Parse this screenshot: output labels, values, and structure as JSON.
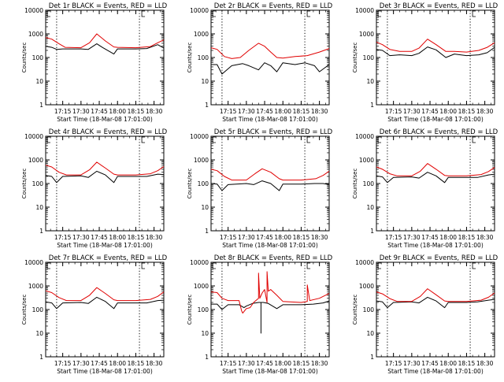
{
  "colors": {
    "events": "#000000",
    "lld": "#e00000",
    "axis": "#000000",
    "background": "#ffffff"
  },
  "chart_data": [
    {
      "type": "line",
      "title": "Det 1r BLACK = Events, RED = LLD",
      "ylabel": "Counts/sec",
      "xlabel": "Start Time (18-Mar-08 17:01:00)",
      "yscale": "log",
      "ylim": [
        1,
        10000
      ],
      "ytick_labels": [
        "1",
        "10",
        "100",
        "1000",
        "10000"
      ],
      "x_tick_labels": [
        "17:15",
        "17:30",
        "17:45",
        "18:00",
        "18:15",
        "18:30"
      ],
      "xlim": [
        "17:01",
        "18:38"
      ],
      "vlines": [
        "17:10",
        "18:18"
      ],
      "series": [
        {
          "name": "Events",
          "x": [
            "17:01",
            "17:06",
            "17:10",
            "17:15",
            "17:30",
            "17:36",
            "17:43",
            "17:48",
            "17:57",
            "18:00",
            "18:15",
            "18:24",
            "18:33",
            "18:38"
          ],
          "values": [
            300,
            270,
            220,
            230,
            230,
            220,
            380,
            260,
            140,
            230,
            230,
            240,
            350,
            250
          ]
        },
        {
          "name": "LLD",
          "x": [
            "17:01",
            "17:06",
            "17:12",
            "17:17",
            "17:30",
            "17:37",
            "17:43",
            "17:50",
            "17:57",
            "18:00",
            "18:15",
            "18:27",
            "18:33",
            "18:38"
          ],
          "values": [
            700,
            600,
            380,
            270,
            260,
            420,
            1000,
            500,
            280,
            270,
            260,
            290,
            420,
            560
          ]
        }
      ]
    },
    {
      "type": "line",
      "title": "Det 2r BLACK = Events, RED = LLD",
      "ylabel": "Counts/sec",
      "xlabel": "Start Time (18-Mar-08 17:01:00)",
      "yscale": "log",
      "ylim": [
        1,
        10000
      ],
      "ytick_labels": [
        "1",
        "10",
        "100",
        "1000",
        "10000"
      ],
      "x_tick_labels": [
        "17:15",
        "17:30",
        "17:45",
        "18:00",
        "18:15",
        "18:30"
      ],
      "xlim": [
        "17:01",
        "18:38"
      ],
      "vlines": [
        "17:10",
        "18:18"
      ],
      "series": [
        {
          "name": "Events",
          "x": [
            "17:01",
            "17:06",
            "17:10",
            "17:18",
            "17:27",
            "17:32",
            "17:40",
            "17:45",
            "17:50",
            "17:55",
            "18:00",
            "18:10",
            "18:18",
            "18:26",
            "18:30",
            "18:38"
          ],
          "values": [
            50,
            50,
            20,
            45,
            55,
            45,
            30,
            60,
            45,
            25,
            60,
            50,
            60,
            45,
            25,
            50
          ]
        },
        {
          "name": "LLD",
          "x": [
            "17:01",
            "17:06",
            "17:12",
            "17:18",
            "17:25",
            "17:32",
            "17:40",
            "17:45",
            "17:50",
            "17:55",
            "18:00",
            "18:10",
            "18:20",
            "18:30",
            "18:38"
          ],
          "values": [
            260,
            220,
            110,
            90,
            100,
            200,
            400,
            300,
            170,
            100,
            95,
            110,
            120,
            170,
            240
          ]
        }
      ]
    },
    {
      "type": "line",
      "title": "Det 3r BLACK = Events, RED = LLD",
      "ylabel": "Counts/sec",
      "xlabel": "Start Time (18-Mar-08 17:01:00)",
      "yscale": "log",
      "ylim": [
        1,
        10000
      ],
      "ytick_labels": [
        "1",
        "10",
        "100",
        "1000",
        "10000"
      ],
      "x_tick_labels": [
        "17:15",
        "17:30",
        "17:45",
        "18:00",
        "18:15",
        "18:30"
      ],
      "xlim": [
        "17:01",
        "18:38"
      ],
      "vlines": [
        "17:10",
        "18:18"
      ],
      "series": [
        {
          "name": "Events",
          "x": [
            "17:01",
            "17:06",
            "17:12",
            "17:20",
            "17:30",
            "17:36",
            "17:43",
            "17:50",
            "17:58",
            "18:05",
            "18:15",
            "18:25",
            "18:32",
            "18:38"
          ],
          "values": [
            220,
            200,
            120,
            130,
            120,
            150,
            280,
            210,
            100,
            140,
            120,
            130,
            160,
            270
          ]
        },
        {
          "name": "LLD",
          "x": [
            "17:01",
            "17:06",
            "17:12",
            "17:20",
            "17:30",
            "17:36",
            "17:43",
            "17:50",
            "17:58",
            "18:05",
            "18:15",
            "18:25",
            "18:32",
            "18:38"
          ],
          "values": [
            450,
            350,
            220,
            180,
            180,
            250,
            600,
            350,
            180,
            180,
            170,
            200,
            270,
            420
          ]
        }
      ]
    },
    {
      "type": "line",
      "title": "Det 4r BLACK = Events, RED = LLD",
      "ylabel": "Counts/sec",
      "xlabel": "Start Time (18-Mar-08 17:01:00)",
      "yscale": "log",
      "ylim": [
        1,
        10000
      ],
      "ytick_labels": [
        "1",
        "10",
        "100",
        "1000",
        "10000"
      ],
      "x_tick_labels": [
        "17:15",
        "17:30",
        "17:45",
        "18:00",
        "18:15",
        "18:30"
      ],
      "xlim": [
        "17:01",
        "18:38"
      ],
      "vlines": [
        "17:10",
        "18:18"
      ],
      "series": [
        {
          "name": "Events",
          "x": [
            "17:01",
            "17:06",
            "17:10",
            "17:15",
            "17:30",
            "17:36",
            "17:43",
            "17:50",
            "17:57",
            "18:00",
            "18:15",
            "18:24",
            "18:33",
            "18:38"
          ],
          "values": [
            220,
            200,
            110,
            200,
            210,
            180,
            330,
            230,
            110,
            200,
            200,
            200,
            250,
            240
          ]
        },
        {
          "name": "LLD",
          "x": [
            "17:01",
            "17:06",
            "17:12",
            "17:18",
            "17:30",
            "17:37",
            "17:43",
            "17:50",
            "17:57",
            "18:00",
            "18:15",
            "18:27",
            "18:33",
            "18:38"
          ],
          "values": [
            600,
            500,
            300,
            230,
            230,
            380,
            800,
            450,
            250,
            230,
            230,
            260,
            350,
            520
          ]
        }
      ]
    },
    {
      "type": "line",
      "title": "Det 5r BLACK = Events, RED = LLD",
      "ylabel": "Counts/sec",
      "xlabel": "Start Time (18-Mar-08 17:01:00)",
      "yscale": "log",
      "ylim": [
        1,
        10000
      ],
      "ytick_labels": [
        "1",
        "10",
        "100",
        "1000",
        "10000"
      ],
      "x_tick_labels": [
        "17:15",
        "17:30",
        "17:45",
        "18:00",
        "18:15",
        "18:30"
      ],
      "xlim": [
        "17:01",
        "18:38"
      ],
      "vlines": [
        "17:10",
        "18:18"
      ],
      "series": [
        {
          "name": "Events",
          "x": [
            "17:01",
            "17:06",
            "17:10",
            "17:15",
            "17:30",
            "17:36",
            "17:43",
            "17:50",
            "17:57",
            "18:00",
            "18:15",
            "18:26",
            "18:33",
            "18:38"
          ],
          "values": [
            100,
            95,
            50,
            90,
            100,
            90,
            130,
            100,
            50,
            95,
            95,
            100,
            100,
            90
          ]
        },
        {
          "name": "LLD",
          "x": [
            "17:01",
            "17:06",
            "17:12",
            "17:18",
            "17:30",
            "17:37",
            "17:43",
            "17:50",
            "17:57",
            "18:00",
            "18:15",
            "18:27",
            "18:33",
            "18:38"
          ],
          "values": [
            400,
            350,
            200,
            140,
            140,
            260,
            420,
            300,
            160,
            140,
            140,
            160,
            220,
            330
          ]
        }
      ]
    },
    {
      "type": "line",
      "title": "Det 6r BLACK = Events, RED = LLD",
      "ylabel": "Counts/sec",
      "xlabel": "Start Time (18-Mar-08 17:01:00)",
      "yscale": "log",
      "ylim": [
        1,
        10000
      ],
      "ytick_labels": [
        "1",
        "10",
        "100",
        "1000",
        "10000"
      ],
      "x_tick_labels": [
        "17:15",
        "17:30",
        "17:45",
        "18:00",
        "18:15",
        "18:30"
      ],
      "xlim": [
        "17:01",
        "18:38"
      ],
      "vlines": [
        "17:10",
        "18:18"
      ],
      "series": [
        {
          "name": "Events",
          "x": [
            "17:01",
            "17:06",
            "17:10",
            "17:15",
            "17:30",
            "17:36",
            "17:43",
            "17:50",
            "17:57",
            "18:00",
            "18:15",
            "18:24",
            "18:33",
            "18:38"
          ],
          "values": [
            210,
            190,
            110,
            180,
            190,
            170,
            300,
            210,
            110,
            180,
            180,
            180,
            230,
            250
          ]
        },
        {
          "name": "LLD",
          "x": [
            "17:01",
            "17:06",
            "17:12",
            "17:18",
            "17:30",
            "17:37",
            "17:43",
            "17:50",
            "17:57",
            "18:00",
            "18:15",
            "18:27",
            "18:33",
            "18:38"
          ],
          "values": [
            500,
            400,
            260,
            210,
            210,
            330,
            700,
            400,
            220,
            210,
            210,
            240,
            320,
            480
          ]
        }
      ]
    },
    {
      "type": "line",
      "title": "Det 7r BLACK = Events, RED = LLD",
      "ylabel": "Counts/sec",
      "xlabel": "Start Time (18-Mar-08 17:01:00)",
      "yscale": "log",
      "ylim": [
        1,
        10000
      ],
      "ytick_labels": [
        "1",
        "10",
        "100",
        "1000",
        "10000"
      ],
      "x_tick_labels": [
        "17:15",
        "17:30",
        "17:45",
        "18:00",
        "18:15",
        "18:30"
      ],
      "xlim": [
        "17:01",
        "18:38"
      ],
      "vlines": [
        "17:10",
        "18:18"
      ],
      "series": [
        {
          "name": "Events",
          "x": [
            "17:01",
            "17:06",
            "17:10",
            "17:15",
            "17:30",
            "17:36",
            "17:43",
            "17:50",
            "17:57",
            "18:00",
            "18:15",
            "18:24",
            "18:33",
            "18:38"
          ],
          "values": [
            210,
            190,
            110,
            190,
            200,
            180,
            330,
            220,
            110,
            190,
            190,
            190,
            240,
            250
          ]
        },
        {
          "name": "LLD",
          "x": [
            "17:01",
            "17:06",
            "17:12",
            "17:18",
            "17:30",
            "17:37",
            "17:43",
            "17:50",
            "17:57",
            "18:00",
            "18:15",
            "18:27",
            "18:33",
            "18:38"
          ],
          "values": [
            620,
            520,
            320,
            240,
            240,
            400,
            850,
            480,
            260,
            240,
            240,
            270,
            360,
            560
          ]
        }
      ]
    },
    {
      "type": "line",
      "title": "Det 8r BLACK = Events, RED = LLD",
      "ylabel": "Counts/sec",
      "xlabel": "Start Time (18-Mar-08 17:01:00)",
      "yscale": "log",
      "ylim": [
        1,
        10000
      ],
      "ytick_labels": [
        "1",
        "10",
        "100",
        "1000",
        "10000"
      ],
      "x_tick_labels": [
        "17:15",
        "17:30",
        "17:45",
        "18:00",
        "18:15",
        "18:30"
      ],
      "xlim": [
        "17:01",
        "18:38"
      ],
      "vlines": [
        "17:10",
        "18:18"
      ],
      "series": [
        {
          "name": "Events",
          "x": [
            "17:01",
            "17:06",
            "17:10",
            "17:15",
            "17:24",
            "17:28",
            "17:30",
            "17:35",
            "17:40",
            "17:42",
            "17:42",
            "17:42",
            "17:44",
            "17:48",
            "17:55",
            "18:00",
            "18:15",
            "18:25",
            "18:33",
            "18:38"
          ],
          "values": [
            170,
            170,
            100,
            160,
            160,
            120,
            140,
            180,
            200,
            200,
            10,
            200,
            200,
            180,
            110,
            160,
            160,
            170,
            190,
            230
          ]
        },
        {
          "name": "LLD",
          "x": [
            "17:01",
            "17:06",
            "17:10",
            "17:15",
            "17:24",
            "17:26",
            "17:27",
            "17:30",
            "17:33",
            "17:36",
            "17:40",
            "17:40",
            "17:41",
            "17:43",
            "17:45",
            "17:47",
            "17:47",
            "17:48",
            "17:50",
            "17:55",
            "18:00",
            "18:15",
            "18:20",
            "18:20",
            "18:22",
            "18:30",
            "18:38"
          ],
          "values": [
            560,
            520,
            300,
            240,
            240,
            90,
            70,
            110,
            120,
            200,
            300,
            3500,
            300,
            500,
            700,
            200,
            4000,
            600,
            700,
            400,
            220,
            200,
            220,
            1100,
            240,
            300,
            480
          ]
        }
      ]
    },
    {
      "type": "line",
      "title": "Det 9r BLACK = Events, RED = LLD",
      "ylabel": "Counts/sec",
      "xlabel": "Start Time (18-Mar-08 17:01:00)",
      "yscale": "log",
      "ylim": [
        1,
        10000
      ],
      "ytick_labels": [
        "1",
        "10",
        "100",
        "1000",
        "10000"
      ],
      "x_tick_labels": [
        "17:15",
        "17:30",
        "17:45",
        "18:00",
        "18:15",
        "18:30"
      ],
      "xlim": [
        "17:01",
        "18:38"
      ],
      "vlines": [
        "17:10",
        "18:18"
      ],
      "series": [
        {
          "name": "Events",
          "x": [
            "17:01",
            "17:06",
            "17:10",
            "17:15",
            "17:30",
            "17:36",
            "17:43",
            "17:50",
            "17:57",
            "18:00",
            "18:15",
            "18:24",
            "18:33",
            "18:38"
          ],
          "values": [
            230,
            210,
            120,
            200,
            210,
            190,
            330,
            230,
            120,
            200,
            200,
            210,
            250,
            270
          ]
        },
        {
          "name": "LLD",
          "x": [
            "17:01",
            "17:06",
            "17:12",
            "17:18",
            "17:30",
            "17:37",
            "17:43",
            "17:50",
            "17:57",
            "18:00",
            "18:15",
            "18:27",
            "18:33",
            "18:38"
          ],
          "values": [
            560,
            460,
            290,
            220,
            220,
            360,
            760,
            420,
            230,
            220,
            220,
            250,
            330,
            500
          ]
        }
      ]
    }
  ]
}
